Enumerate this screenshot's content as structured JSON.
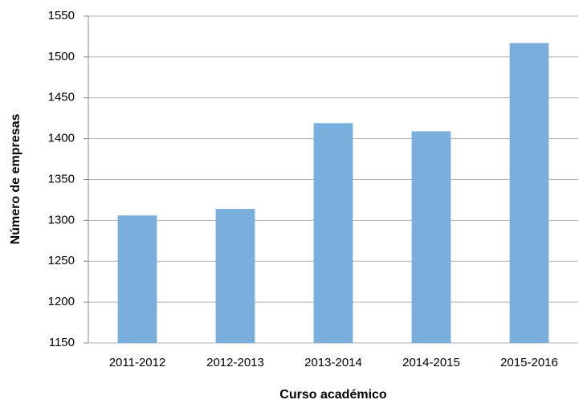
{
  "chart_data": {
    "type": "bar",
    "x_label": "Curso académico",
    "y_label": "Número de empresas",
    "categories": [
      "2011-2012",
      "2012-2013",
      "2013-2014",
      "2014-2015",
      "2015-2016"
    ],
    "values": [
      1306,
      1314,
      1419,
      1409,
      1517
    ],
    "color": "#7aaedb",
    "ylim": [
      1150,
      1550
    ],
    "yticks": [
      1150,
      1200,
      1250,
      1300,
      1350,
      1400,
      1450,
      1500,
      1550
    ],
    "grid": true
  }
}
